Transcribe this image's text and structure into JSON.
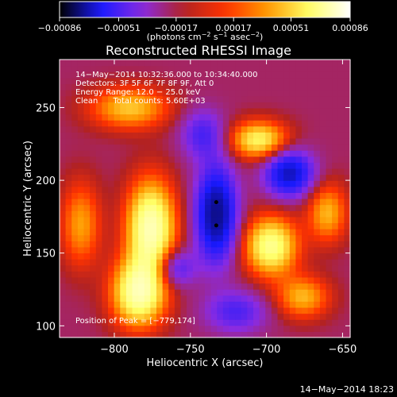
{
  "chart_data": {
    "type": "heatmap",
    "title": "Reconstructed RHESSI Image",
    "xlabel": "Heliocentric X (arcsec)",
    "ylabel": "Heliocentric Y (arcsec)",
    "xlim": [
      -836,
      -645
    ],
    "ylim": [
      92,
      283
    ],
    "xticks": [
      -800,
      -750,
      -700,
      -650
    ],
    "xtick_labels": [
      "−800",
      "−750",
      "−700",
      "−650"
    ],
    "yticks": [
      100,
      150,
      200,
      250
    ],
    "ytick_labels": [
      "100",
      "150",
      "200",
      "250"
    ],
    "colorbar": {
      "min": -0.00086,
      "max": 0.00086,
      "ticks": [
        -0.00086,
        -0.00051,
        -0.00017,
        0.00017,
        0.00051,
        0.00086
      ],
      "tick_labels": [
        "−0.00086",
        "−0.00051",
        "−0.00017",
        "0.00017",
        "0.00051",
        "0.00086"
      ],
      "unit_parts": [
        "(photons cm",
        "−2",
        " s",
        "−1",
        " asec",
        "−2",
        ")"
      ]
    },
    "info_lines": [
      "14−May−2014 10:32:36.000 to 10:34:40.000",
      "Detectors: 3F 5F 6F 7F 8F 9F, Att 0",
      "Energy Range: 12.0 − 25.0 keV",
      "Clean      Total counts: 5.60E+03"
    ],
    "peak_label": "Position of Peak = [−779,174]",
    "markers": [
      {
        "x": -733,
        "y": 185
      },
      {
        "x": -733,
        "y": 169
      }
    ],
    "colormap": [
      "#000000",
      "#1a1aff",
      "#8a2be2",
      "#b22222",
      "#ff3300",
      "#ff9900",
      "#ffff66",
      "#ffffff"
    ],
    "sources": [
      {
        "x": -776,
        "y": 168,
        "sx": 11,
        "sy": 22,
        "amp": 1.0
      },
      {
        "x": -784,
        "y": 123,
        "sx": 12,
        "sy": 16,
        "amp": 0.95
      },
      {
        "x": -697,
        "y": 155,
        "sx": 12,
        "sy": 14,
        "amp": 0.85
      },
      {
        "x": -705,
        "y": 228,
        "sx": 13,
        "sy": 9,
        "amp": 0.72
      },
      {
        "x": -790,
        "y": 250,
        "sx": 18,
        "sy": 10,
        "amp": 0.55
      },
      {
        "x": -822,
        "y": 170,
        "sx": 9,
        "sy": 20,
        "amp": 0.45
      },
      {
        "x": -660,
        "y": 178,
        "sx": 9,
        "sy": 14,
        "amp": 0.5
      },
      {
        "x": -676,
        "y": 120,
        "sx": 12,
        "sy": 10,
        "amp": 0.5
      },
      {
        "x": -733,
        "y": 177,
        "sx": 9,
        "sy": 22,
        "amp": -1.0
      },
      {
        "x": -685,
        "y": 205,
        "sx": 11,
        "sy": 11,
        "amp": -0.8
      },
      {
        "x": -760,
        "y": 140,
        "sx": 9,
        "sy": 9,
        "amp": -0.45
      },
      {
        "x": -742,
        "y": 232,
        "sx": 10,
        "sy": 12,
        "amp": -0.4
      },
      {
        "x": -720,
        "y": 110,
        "sx": 14,
        "sy": 10,
        "amp": -0.4
      }
    ],
    "footer_date": "14−May−2014 18:23"
  }
}
